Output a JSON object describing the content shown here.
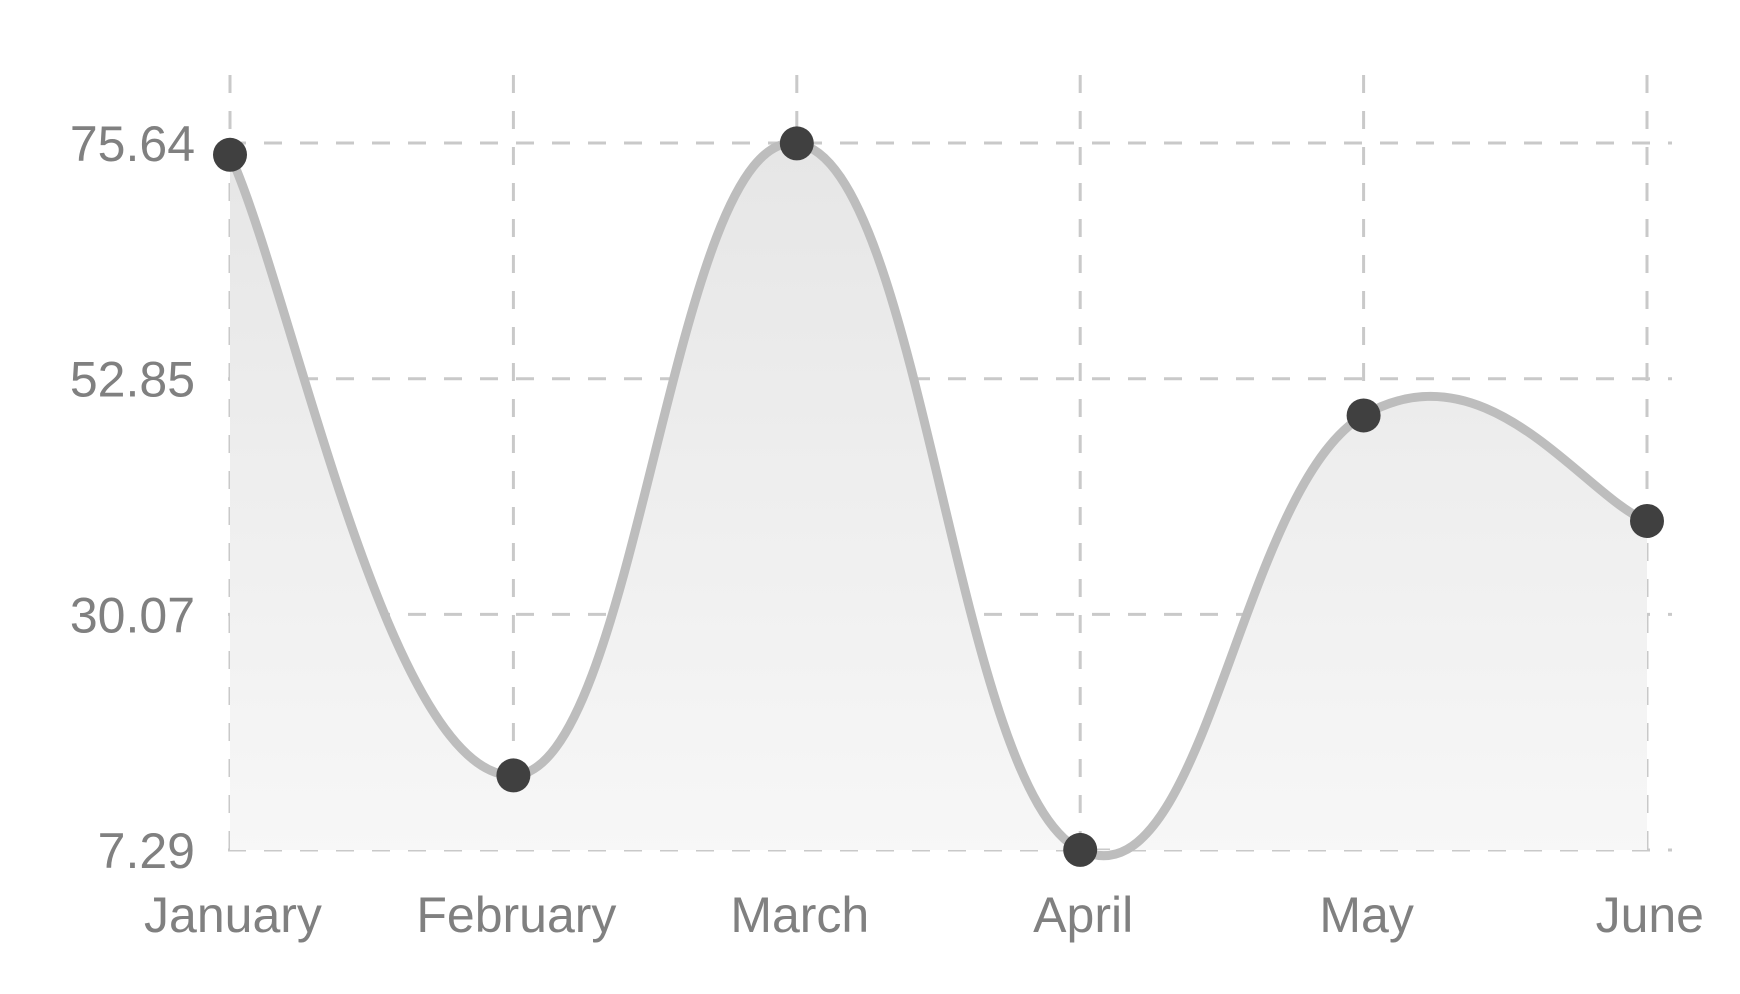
{
  "chart_data": {
    "type": "area",
    "title": "",
    "xlabel": "",
    "ylabel": "",
    "categories": [
      "January",
      "February",
      "March",
      "April",
      "May",
      "June"
    ],
    "series": [
      {
        "values": [
          74.5,
          14.5,
          75.6,
          7.3,
          49.3,
          39.1
        ]
      }
    ],
    "y_ticks": [
      "7.29",
      "30.07",
      "52.85",
      "75.64"
    ],
    "ylim": [
      7.29,
      75.64
    ],
    "grid": true,
    "curve": "smooth",
    "colors": {
      "line": "#bdbdbd",
      "point": "#404040",
      "grid": "#c9c9c9",
      "fill_top": "#e6e6e6",
      "fill_bottom": "#f7f7f7",
      "label": "#808080"
    }
  }
}
